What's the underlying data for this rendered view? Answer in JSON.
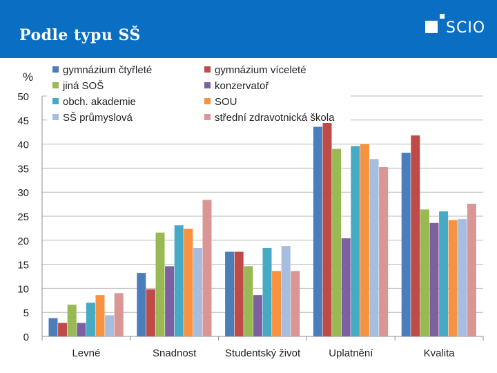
{
  "header": {
    "title": "Podle typu SŠ",
    "logo_text": "SCIO",
    "bg_color": "#0a6fc2"
  },
  "chart_data": {
    "type": "bar",
    "ylabel": "%",
    "ylim": [
      0,
      50
    ],
    "yticks": [
      0,
      5,
      10,
      15,
      20,
      25,
      30,
      35,
      40,
      45,
      50
    ],
    "categories": [
      "Levné",
      "Snadnost",
      "Studentský život",
      "Uplatnění",
      "Kvalita"
    ],
    "legend_position": "top",
    "series": [
      {
        "name": "gymnázium čtyřleté",
        "color": "#4a7ebb",
        "values": [
          3.8,
          13.2,
          17.6,
          43.6,
          38.2
        ]
      },
      {
        "name": "gymnázium víceleté",
        "color": "#be4b48",
        "values": [
          2.8,
          9.8,
          17.6,
          44.6,
          41.8
        ]
      },
      {
        "name": "jiná SOŠ",
        "color": "#98b954",
        "values": [
          6.6,
          21.6,
          14.6,
          39.0,
          26.4
        ]
      },
      {
        "name": "konzervatoř",
        "color": "#7d60a0",
        "values": [
          2.8,
          14.6,
          8.6,
          20.4,
          23.6
        ]
      },
      {
        "name": "obch. akademie",
        "color": "#46aac5",
        "values": [
          7.0,
          23.1,
          18.4,
          39.6,
          26.0
        ]
      },
      {
        "name": "SOU",
        "color": "#f69240",
        "values": [
          8.6,
          22.4,
          13.6,
          40.0,
          24.2
        ]
      },
      {
        "name": "SŠ průmyslová",
        "color": "#a7bde0",
        "values": [
          4.4,
          18.4,
          18.8,
          36.9,
          24.4
        ]
      },
      {
        "name": "střední zdravotnická škola",
        "color": "#da9694",
        "values": [
          9.0,
          28.4,
          13.6,
          35.2,
          27.6
        ]
      }
    ]
  }
}
